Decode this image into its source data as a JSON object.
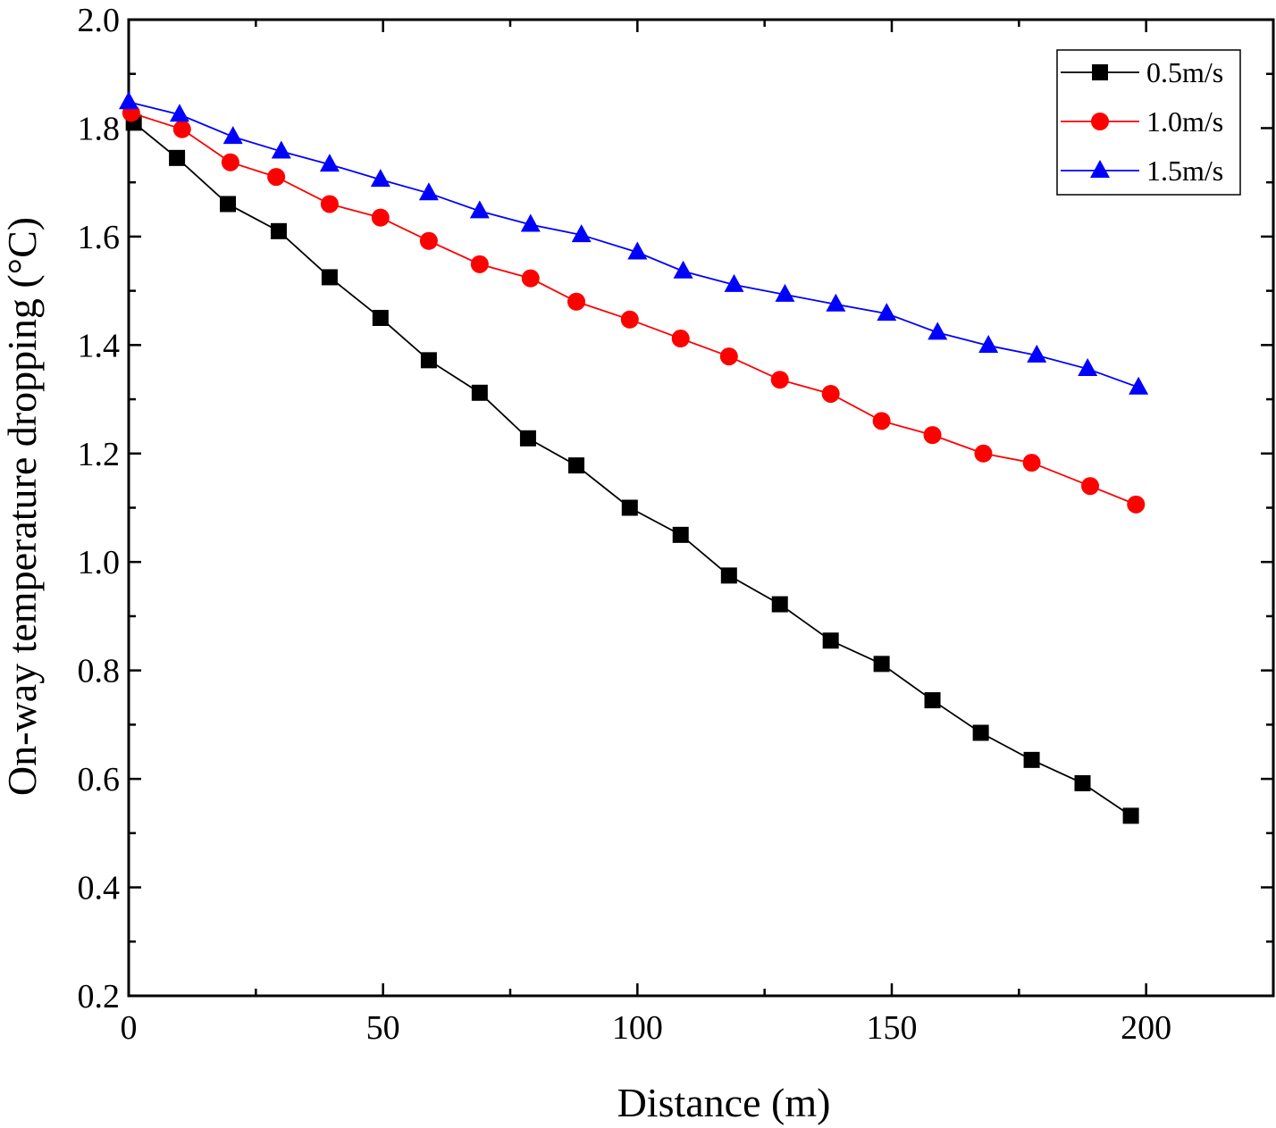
{
  "chart_data": {
    "type": "line",
    "title": "",
    "xlabel": "Distance (m)",
    "ylabel": "On-way temperature dropping (°C)",
    "xlim": [
      0,
      225
    ],
    "ylim": [
      0.2,
      2.0
    ],
    "xticks": [
      0,
      50,
      100,
      150,
      200
    ],
    "xtick_labels": [
      "0",
      "50",
      "100",
      "150",
      "200"
    ],
    "yticks": [
      0.2,
      0.4,
      0.6,
      0.8,
      1.0,
      1.2,
      1.4,
      1.6,
      1.8,
      2.0
    ],
    "ytick_labels": [
      "0.2",
      "0.4",
      "0.6",
      "0.8",
      "1.0",
      "1.2",
      "1.4",
      "1.6",
      "1.8",
      "2.0"
    ],
    "legend_position": "top-right",
    "series": [
      {
        "name": "0.5m/s",
        "color": "#000000",
        "marker": "square",
        "x": [
          1,
          9.5,
          19.5,
          29.5,
          39.5,
          49.5,
          59,
          69,
          78.5,
          88,
          98.5,
          108.5,
          118,
          128,
          138,
          148,
          158,
          167.5,
          177.5,
          187.5,
          197
        ],
        "y": [
          1.81,
          1.745,
          1.66,
          1.61,
          1.525,
          1.45,
          1.372,
          1.312,
          1.228,
          1.178,
          1.1,
          1.05,
          0.975,
          0.922,
          0.855,
          0.812,
          0.745,
          0.685,
          0.635,
          0.592,
          0.532
        ]
      },
      {
        "name": "1.0m/s",
        "color": "#ff0000",
        "marker": "circle",
        "x": [
          0.5,
          10.5,
          20,
          29,
          39.5,
          49.5,
          59,
          69,
          79,
          88,
          98.5,
          108.5,
          118,
          128,
          138,
          148,
          158,
          168,
          177.5,
          189,
          198
        ],
        "y": [
          1.828,
          1.798,
          1.737,
          1.71,
          1.66,
          1.635,
          1.592,
          1.549,
          1.523,
          1.48,
          1.447,
          1.412,
          1.379,
          1.336,
          1.31,
          1.26,
          1.234,
          1.2,
          1.183,
          1.14,
          1.106
        ]
      },
      {
        "name": "1.5m/s",
        "color": "#0000ff",
        "marker": "triangle",
        "x": [
          0,
          10,
          20.5,
          30,
          39.5,
          49.5,
          59,
          69,
          79,
          89,
          100,
          109,
          119,
          129,
          139,
          149,
          159,
          169,
          178.5,
          188.5,
          198.5
        ],
        "y": [
          1.848,
          1.825,
          1.784,
          1.757,
          1.733,
          1.705,
          1.68,
          1.647,
          1.622,
          1.603,
          1.571,
          1.536,
          1.511,
          1.493,
          1.475,
          1.458,
          1.423,
          1.399,
          1.381,
          1.356,
          1.322
        ]
      }
    ]
  }
}
